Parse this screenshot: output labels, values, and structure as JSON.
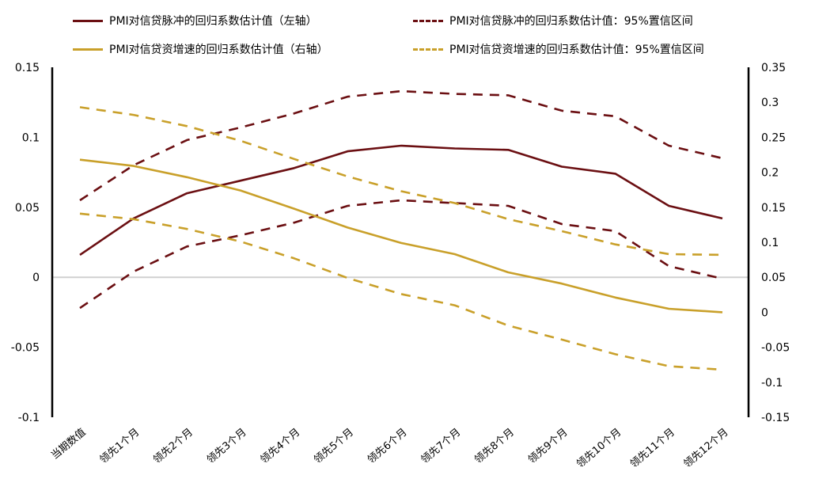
{
  "chart_data": {
    "type": "line",
    "categories": [
      "当期数值",
      "领先1个月",
      "领先2个月",
      "领先3个月",
      "领先4个月",
      "领先5个月",
      "领先6个月",
      "领先7个月",
      "领先8个月",
      "领先9个月",
      "领先10个月",
      "领先11个月",
      "领先12个月"
    ],
    "y_left": {
      "lim": [
        -0.1,
        0.15
      ],
      "ticks": [
        "-0.1",
        "-0.05",
        "0",
        "0.05",
        "0.1",
        "0.15"
      ]
    },
    "y_right": {
      "lim": [
        -0.15,
        0.35
      ],
      "ticks": [
        "-0.15",
        "-0.1",
        "-0.05",
        "0",
        "0.05",
        "0.1",
        "0.15",
        "0.2",
        "0.25",
        "0.3",
        "0.35"
      ]
    },
    "series": [
      {
        "name": "PMI对信贷脉冲的回归系数估计值（左轴）",
        "axis": "left",
        "style": "solid",
        "color": "#6b0f12",
        "values": [
          0.016,
          0.042,
          0.06,
          0.069,
          0.078,
          0.09,
          0.094,
          0.092,
          0.091,
          0.079,
          0.074,
          0.051,
          0.042
        ]
      },
      {
        "name": "PMI对信贷脉冲的回归系数估计值：95%置信区间",
        "axis": "left",
        "style": "dashed",
        "color": "#6b0f12",
        "values": [
          0.055,
          0.08,
          0.098,
          0.107,
          0.117,
          0.129,
          0.133,
          0.131,
          0.13,
          0.119,
          0.115,
          0.094,
          0.085
        ]
      },
      {
        "name": "",
        "axis": "left",
        "style": "dashed",
        "color": "#6b0f12",
        "values": [
          -0.022,
          0.004,
          0.022,
          0.03,
          0.039,
          0.051,
          0.055,
          0.053,
          0.051,
          0.038,
          0.033,
          0.008,
          -0.001
        ]
      },
      {
        "name": "PMI对信贷资增速的回归系数估计值（右轴）",
        "axis": "right",
        "style": "solid",
        "color": "#c9a02a",
        "values": [
          0.218,
          0.209,
          0.193,
          0.174,
          0.148,
          0.121,
          0.099,
          0.083,
          0.057,
          0.041,
          0.021,
          0.005,
          0.0
        ]
      },
      {
        "name": "PMI对信贷资增速的回归系数估计值：95%置信区间",
        "axis": "right",
        "style": "dashed",
        "color": "#c9a02a",
        "values": [
          0.293,
          0.282,
          0.266,
          0.245,
          0.219,
          0.194,
          0.173,
          0.156,
          0.133,
          0.116,
          0.097,
          0.083,
          0.082
        ]
      },
      {
        "name": "",
        "axis": "right",
        "style": "dashed",
        "color": "#c9a02a",
        "values": [
          0.141,
          0.133,
          0.119,
          0.101,
          0.077,
          0.049,
          0.026,
          0.01,
          -0.019,
          -0.039,
          -0.06,
          -0.077,
          -0.082
        ]
      }
    ]
  }
}
